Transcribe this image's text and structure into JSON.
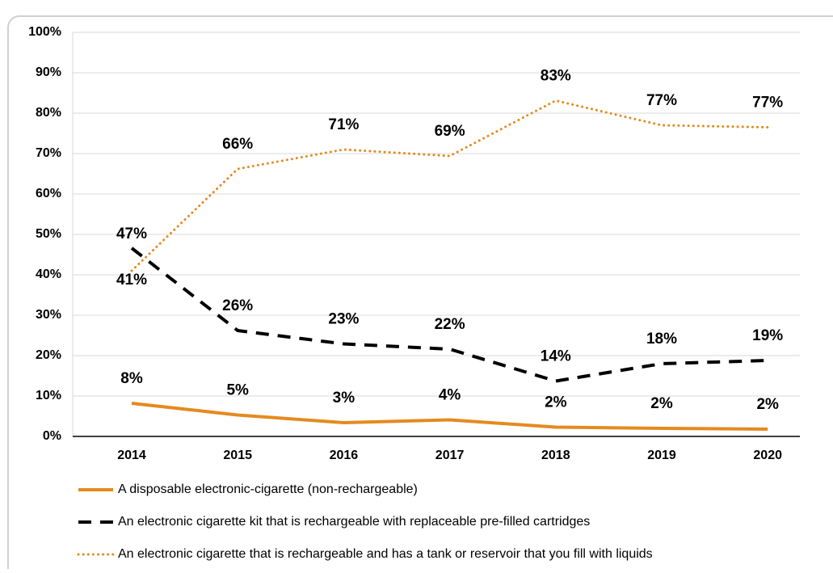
{
  "chart_data": {
    "type": "line",
    "categories": [
      "2014",
      "2015",
      "2016",
      "2017",
      "2018",
      "2019",
      "2020"
    ],
    "series": [
      {
        "name": "A disposable electronic-cigarette (non-rechargeable)",
        "color": "#e58a1f",
        "style": "solid",
        "values": [
          8.2,
          5.3,
          3.4,
          4.1,
          2.3,
          2.0,
          1.8
        ],
        "value_labels": [
          "8%",
          "5%",
          "3%",
          "4%",
          "2%",
          "2%",
          "2%"
        ]
      },
      {
        "name": "An electronic cigarette kit that is rechargeable with replaceable pre-filled cartridges",
        "color": "#000000",
        "style": "dashed",
        "values": [
          46.6,
          26.2,
          22.9,
          21.6,
          13.7,
          18.0,
          18.8
        ],
        "value_labels": [
          "47%",
          "26%",
          "23%",
          "22%",
          "14%",
          "18%",
          "19%"
        ]
      },
      {
        "name": "An electronic cigarette that is rechargeable and has a tank or reservoir that you fill with liquids",
        "color": "#e58a1f",
        "style": "dotted",
        "values": [
          41.0,
          66.2,
          71.0,
          69.4,
          83.1,
          77.0,
          76.5
        ],
        "value_labels": [
          "41%",
          "66%",
          "71%",
          "69%",
          "83%",
          "77%",
          "77%"
        ]
      }
    ],
    "ylim": [
      0,
      100
    ],
    "yticks": [
      {
        "value": 0,
        "label": "0%"
      },
      {
        "value": 10,
        "label": "10%"
      },
      {
        "value": 20,
        "label": "20%"
      },
      {
        "value": 30,
        "label": "30%"
      },
      {
        "value": 40,
        "label": "40%"
      },
      {
        "value": 50,
        "label": "50%"
      },
      {
        "value": 60,
        "label": "60%"
      },
      {
        "value": 70,
        "label": "70%"
      },
      {
        "value": 80,
        "label": "80%"
      },
      {
        "value": 90,
        "label": "90%"
      },
      {
        "value": 100,
        "label": "100%"
      }
    ],
    "grid": true,
    "legend": "bottom"
  }
}
